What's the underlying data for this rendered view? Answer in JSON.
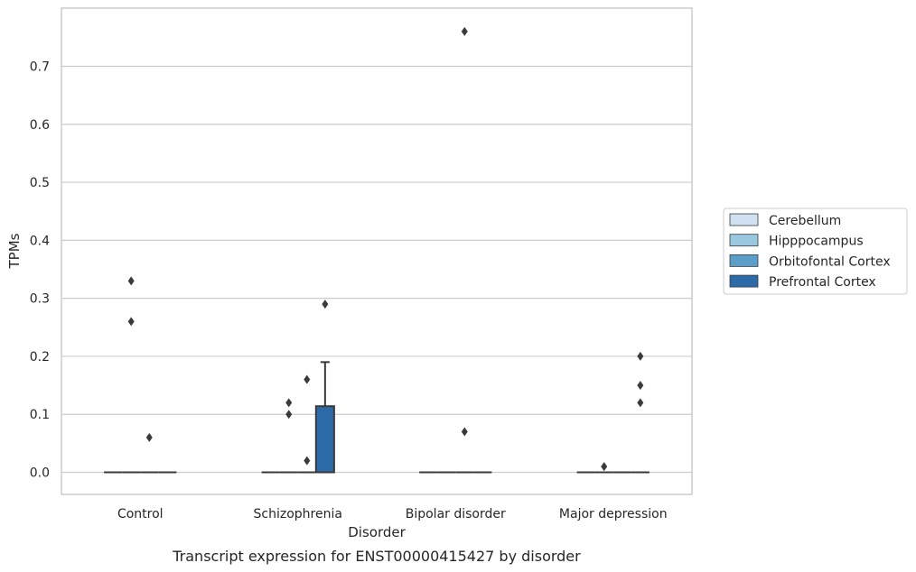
{
  "chart_data": {
    "type": "box",
    "caption": "Transcript expression for ENST00000415427 by disorder",
    "xlabel": "Disorder",
    "ylabel": "TPMs",
    "ylim": [
      -0.037,
      0.8
    ],
    "yticks": [
      0.0,
      0.1,
      0.2,
      0.3,
      0.4,
      0.5,
      0.6,
      0.7
    ],
    "ytick_labels": [
      "0.0",
      "0.1",
      "0.2",
      "0.3",
      "0.4",
      "0.5",
      "0.6",
      "0.7"
    ],
    "grid": true,
    "legend_position": "right",
    "categories": [
      "Control",
      "Schizophrenia",
      "Bipolar disorder",
      "Major depression"
    ],
    "series": [
      {
        "name": "Cerebellum",
        "color": "#d0e2f2",
        "boxes": [
          {
            "q1": 0.0,
            "median": 0.0,
            "q3": 0.0,
            "whisker_low": 0.0,
            "whisker_high": 0.0,
            "outliers": []
          },
          {
            "q1": 0.0,
            "median": 0.0,
            "q3": 0.0,
            "whisker_low": 0.0,
            "whisker_high": 0.0,
            "outliers": []
          },
          {
            "q1": 0.0,
            "median": 0.0,
            "q3": 0.0,
            "whisker_low": 0.0,
            "whisker_high": 0.0,
            "outliers": []
          },
          {
            "q1": 0.0,
            "median": 0.0,
            "q3": 0.0,
            "whisker_low": 0.0,
            "whisker_high": 0.0,
            "outliers": []
          }
        ]
      },
      {
        "name": "Hipppocampus",
        "color": "#9ac8e0",
        "boxes": [
          {
            "q1": 0.0,
            "median": 0.0,
            "q3": 0.0,
            "whisker_low": 0.0,
            "whisker_high": 0.0,
            "outliers": [
              0.33,
              0.26
            ]
          },
          {
            "q1": 0.0,
            "median": 0.0,
            "q3": 0.0,
            "whisker_low": 0.0,
            "whisker_high": 0.0,
            "outliers": [
              0.12,
              0.1
            ]
          },
          {
            "q1": 0.0,
            "median": 0.0,
            "q3": 0.0,
            "whisker_low": 0.0,
            "whisker_high": 0.0,
            "outliers": []
          },
          {
            "q1": 0.0,
            "median": 0.0,
            "q3": 0.0,
            "whisker_low": 0.0,
            "whisker_high": 0.0,
            "outliers": [
              0.01
            ]
          }
        ]
      },
      {
        "name": "Orbitofontal Cortex",
        "color": "#5b9ec9",
        "boxes": [
          {
            "q1": 0.0,
            "median": 0.0,
            "q3": 0.0,
            "whisker_low": 0.0,
            "whisker_high": 0.0,
            "outliers": [
              0.06
            ]
          },
          {
            "q1": 0.0,
            "median": 0.0,
            "q3": 0.0,
            "whisker_low": 0.0,
            "whisker_high": 0.0,
            "outliers": [
              0.16,
              0.02
            ]
          },
          {
            "q1": 0.0,
            "median": 0.0,
            "q3": 0.0,
            "whisker_low": 0.0,
            "whisker_high": 0.0,
            "outliers": [
              0.76,
              0.07
            ]
          },
          {
            "q1": 0.0,
            "median": 0.0,
            "q3": 0.0,
            "whisker_low": 0.0,
            "whisker_high": 0.0,
            "outliers": []
          }
        ]
      },
      {
        "name": "Prefrontal Cortex",
        "color": "#2c6aa8",
        "boxes": [
          {
            "q1": 0.0,
            "median": 0.0,
            "q3": 0.0,
            "whisker_low": 0.0,
            "whisker_high": 0.0,
            "outliers": []
          },
          {
            "q1": 0.0,
            "median": 0.0,
            "q3": 0.114,
            "whisker_low": 0.0,
            "whisker_high": 0.19,
            "outliers": [
              0.29
            ]
          },
          {
            "q1": 0.0,
            "median": 0.0,
            "q3": 0.0,
            "whisker_low": 0.0,
            "whisker_high": 0.0,
            "outliers": []
          },
          {
            "q1": 0.0,
            "median": 0.0,
            "q3": 0.0,
            "whisker_low": 0.0,
            "whisker_high": 0.0,
            "outliers": [
              0.2,
              0.15,
              0.12
            ]
          }
        ]
      }
    ]
  },
  "colors": {
    "grid": "#cccccc",
    "frame": "#cccccc",
    "box_edge": "#3a3a3a",
    "outlier": "#3a3a3a",
    "text": "#262626"
  }
}
